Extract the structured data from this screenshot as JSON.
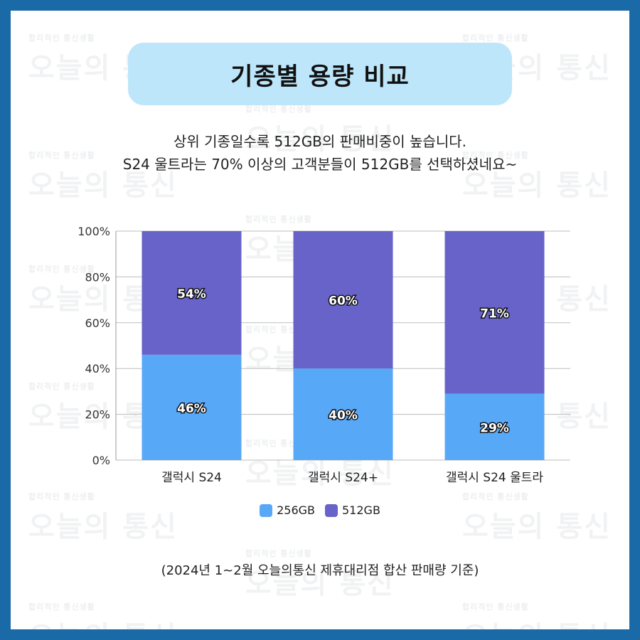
{
  "title": "기종별 용량 비교",
  "subtitle_lines": [
    "상위 기종일수록 512GB의 판매비중이 높습니다.",
    "S24 울트라는 70% 이상의 고객분들이 512GB를 선택하셨네요~"
  ],
  "watermark": {
    "small": "합리적인 통신생활",
    "big": "오늘의 통신"
  },
  "footnote": "(2024년 1~2월 오늘의통신 제휴대리점 합산 판매량 기준)",
  "colors": {
    "frame": "#1a6aa8",
    "title_bg": "#bde6fb",
    "s256": "#58a8f8",
    "s512": "#6763c9"
  },
  "chart_data": {
    "type": "bar",
    "stacked": true,
    "categories": [
      "갤럭시 S24",
      "갤럭시 S24+",
      "갤럭시 S24 울트라"
    ],
    "series": [
      {
        "name": "256GB",
        "values": [
          46,
          40,
          29
        ]
      },
      {
        "name": "512GB",
        "values": [
          54,
          60,
          71
        ]
      }
    ],
    "data_labels": [
      [
        "46%",
        "40%",
        "29%"
      ],
      [
        "54%",
        "60%",
        "71%"
      ]
    ],
    "ylim": [
      0,
      100
    ],
    "yticks": [
      "0%",
      "20%",
      "40%",
      "60%",
      "80%",
      "100%"
    ],
    "xlabel": "",
    "ylabel": "",
    "grid": true,
    "legend": "bottom"
  }
}
